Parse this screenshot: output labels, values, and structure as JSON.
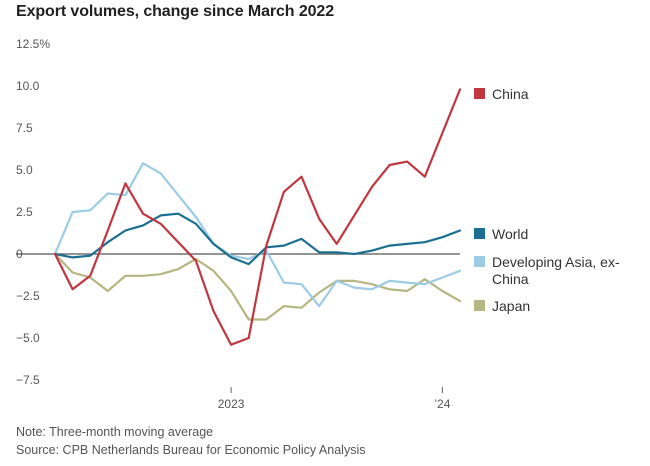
{
  "title": "Export volumes, change since March 2022",
  "note": "Note: Three-month moving average",
  "source": "Source: CPB Netherlands Bureau for Economic Policy Analysis",
  "chart_data": {
    "type": "line",
    "ylim": [
      -7.5,
      12.5
    ],
    "yticks": [
      12.5,
      10.0,
      7.5,
      5.0,
      2.5,
      0,
      -2.5,
      -5.0,
      -7.5
    ],
    "ytick_labels": [
      "12.5%",
      "10.0",
      "7.5",
      "5.0",
      "2.5",
      "0",
      "−2.5",
      "−5.0",
      "−7.5"
    ],
    "x": [
      "2022-03",
      "2022-04",
      "2022-05",
      "2022-06",
      "2022-07",
      "2022-08",
      "2022-09",
      "2022-10",
      "2022-11",
      "2022-12",
      "2023-01",
      "2023-02",
      "2023-03",
      "2023-04",
      "2023-05",
      "2023-06",
      "2023-07",
      "2023-08",
      "2023-09",
      "2023-10",
      "2023-11",
      "2023-12",
      "2024-01",
      "2024-02"
    ],
    "xticks": [
      "2023-01",
      "2024-01"
    ],
    "xtick_labels": [
      "2023",
      "’24"
    ],
    "grid": false,
    "legend_position": "right",
    "series": [
      {
        "name": "China",
        "color": "#c0373f",
        "values": [
          0,
          -2.1,
          -1.3,
          1.4,
          4.2,
          2.4,
          1.8,
          0.7,
          -0.4,
          -3.4,
          -5.4,
          -5.0,
          0.5,
          3.7,
          4.6,
          2.1,
          0.6,
          2.3,
          4.0,
          5.3,
          5.5,
          4.6,
          7.2,
          9.8
        ]
      },
      {
        "name": "World",
        "color": "#1b6f91",
        "values": [
          0,
          -0.2,
          -0.1,
          0.7,
          1.4,
          1.7,
          2.3,
          2.4,
          1.8,
          0.6,
          -0.2,
          -0.6,
          0.4,
          0.5,
          0.9,
          0.1,
          0.1,
          0.0,
          0.2,
          0.5,
          0.6,
          0.7,
          1.0,
          1.4
        ]
      },
      {
        "name": "Developing Asia, ex-China",
        "color": "#9ccbe6",
        "values": [
          0,
          2.5,
          2.6,
          3.6,
          3.5,
          5.4,
          4.8,
          3.5,
          2.2,
          0.6,
          -0.1,
          -0.3,
          0.2,
          -1.7,
          -1.8,
          -3.1,
          -1.6,
          -2.0,
          -2.1,
          -1.6,
          -1.7,
          -1.8,
          -1.4,
          -1.0
        ]
      },
      {
        "name": "Japan",
        "color": "#b6b682",
        "values": [
          0,
          -1.1,
          -1.4,
          -2.2,
          -1.3,
          -1.3,
          -1.2,
          -0.9,
          -0.3,
          -1.0,
          -2.2,
          -3.9,
          -3.9,
          -3.1,
          -3.2,
          -2.3,
          -1.6,
          -1.6,
          -1.8,
          -2.1,
          -2.2,
          -1.5,
          -2.2,
          -2.8
        ]
      }
    ]
  }
}
